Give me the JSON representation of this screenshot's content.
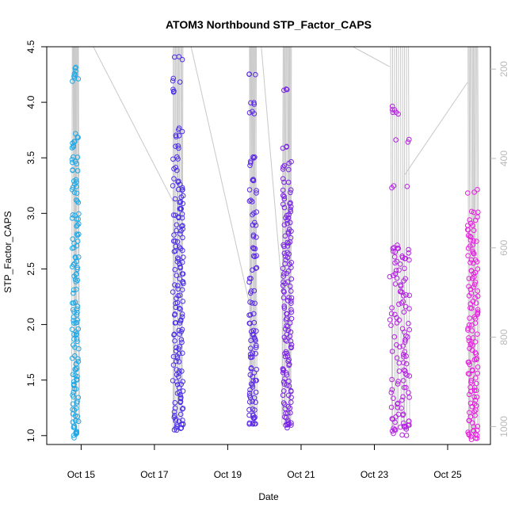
{
  "chart_data": {
    "type": "scatter",
    "title": "ATOM3 Northbound STP_Factor_CAPS",
    "xlabel": "Date",
    "ylabel": "STP_Factor_CAPS",
    "y2label": "",
    "xlim": [
      "2023-10-14T01:30",
      "2023-10-26T04:00"
    ],
    "ylim": [
      0.92,
      4.5
    ],
    "y2lim": [
      1040,
      150
    ],
    "x_ticks": [
      {
        "label": "Oct 15",
        "date": "2023-10-15"
      },
      {
        "label": "Oct 17",
        "date": "2023-10-17"
      },
      {
        "label": "Oct 19",
        "date": "2023-10-19"
      },
      {
        "label": "Oct 21",
        "date": "2023-10-21"
      },
      {
        "label": "Oct 23",
        "date": "2023-10-23"
      },
      {
        "label": "Oct 25",
        "date": "2023-10-25"
      }
    ],
    "y_ticks": [
      "1.0",
      "1.5",
      "2.0",
      "2.5",
      "3.0",
      "3.5",
      "4.0",
      "4.5"
    ],
    "y2_ticks": [
      "200",
      "400",
      "600",
      "800",
      "1000"
    ],
    "grid": false,
    "legend": "none",
    "colors": {
      "profile_line": "#c8c8c8",
      "axis": "#000000",
      "right_axis": "#b8b8b8",
      "gradient_start": "#1fa8e6",
      "gradient_mid": "#4a2fe8",
      "gradient_end": "#e81ee0"
    },
    "series": [
      {
        "color": "#1fa8e6",
        "x_range": [
          "2023-10-14T18:00",
          "2023-10-14T22:30"
        ],
        "y_values": [
          1.0,
          1.02,
          1.04,
          1.08,
          1.12,
          1.18,
          1.25,
          1.3,
          1.35,
          1.4,
          1.45,
          1.5,
          1.55,
          1.6,
          1.65,
          1.7,
          1.8,
          1.85,
          1.9,
          1.95,
          2.0,
          2.05,
          2.1,
          2.15,
          2.2,
          2.3,
          2.4,
          2.45,
          2.5,
          2.55,
          2.6,
          2.7,
          2.75,
          2.8,
          2.9,
          2.95,
          3.0,
          3.1,
          3.2,
          3.25,
          3.3,
          3.4,
          3.45,
          3.5,
          3.6,
          3.65,
          3.7,
          4.2,
          4.25,
          4.3
        ]
      },
      {
        "color": "#4a2fe8",
        "x_range": [
          "2023-10-17T12:00",
          "2023-10-17T19:00"
        ],
        "y_values": [
          1.05,
          1.07,
          1.1,
          1.12,
          1.15,
          1.2,
          1.25,
          1.3,
          1.35,
          1.4,
          1.45,
          1.5,
          1.55,
          1.6,
          1.65,
          1.7,
          1.75,
          1.8,
          1.85,
          1.9,
          1.95,
          2.0,
          2.05,
          2.1,
          2.15,
          2.2,
          2.25,
          2.3,
          2.35,
          2.4,
          2.45,
          2.5,
          2.55,
          2.6,
          2.65,
          2.7,
          2.75,
          2.8,
          2.85,
          2.9,
          2.95,
          3.0,
          3.05,
          3.1,
          3.15,
          3.2,
          3.25,
          3.3,
          3.4,
          3.5,
          3.6,
          3.7,
          3.75,
          4.1,
          4.2,
          4.4
        ]
      },
      {
        "color": "#5a28e6",
        "x_range": [
          "2023-10-19T14:00",
          "2023-10-19T19:00"
        ],
        "y_values": [
          1.1,
          1.12,
          1.15,
          1.2,
          1.25,
          1.3,
          1.35,
          1.4,
          1.45,
          1.5,
          1.55,
          1.6,
          1.7,
          1.75,
          1.8,
          1.85,
          1.9,
          1.95,
          2.0,
          2.1,
          2.2,
          2.3,
          2.4,
          2.5,
          2.6,
          2.7,
          2.8,
          2.9,
          3.0,
          3.1,
          3.2,
          3.3,
          3.45,
          3.5,
          3.9,
          4.0,
          4.25
        ]
      },
      {
        "color": "#7a24e4",
        "x_range": [
          "2023-10-20T12:00",
          "2023-10-20T18:00"
        ],
        "y_values": [
          1.08,
          1.1,
          1.12,
          1.15,
          1.2,
          1.25,
          1.3,
          1.35,
          1.4,
          1.45,
          1.5,
          1.55,
          1.6,
          1.65,
          1.7,
          1.75,
          1.8,
          1.85,
          1.9,
          1.95,
          2.0,
          2.05,
          2.1,
          2.15,
          2.2,
          2.25,
          2.3,
          2.35,
          2.4,
          2.45,
          2.5,
          2.55,
          2.6,
          2.65,
          2.7,
          2.75,
          2.8,
          2.85,
          2.9,
          2.95,
          3.0,
          3.05,
          3.1,
          3.15,
          3.2,
          3.3,
          3.4,
          3.45,
          3.6,
          4.12
        ]
      },
      {
        "color": "#b422e2",
        "x_range": [
          "2023-10-23T10:00",
          "2023-10-23T23:00"
        ],
        "y_values": [
          1.02,
          1.04,
          1.06,
          1.08,
          1.1,
          1.12,
          1.15,
          1.2,
          1.25,
          1.3,
          1.35,
          1.4,
          1.45,
          1.5,
          1.55,
          1.6,
          1.65,
          1.7,
          1.75,
          1.8,
          1.85,
          1.9,
          1.95,
          2.0,
          2.05,
          2.1,
          2.15,
          2.2,
          2.25,
          2.3,
          2.35,
          2.4,
          2.45,
          2.5,
          2.55,
          2.6,
          2.62,
          2.65,
          2.68,
          2.7,
          3.25,
          3.65,
          3.9,
          3.95
        ]
      },
      {
        "color": "#e81ee0",
        "x_range": [
          "2023-10-25T13:00",
          "2023-10-25T20:00"
        ],
        "y_values": [
          0.98,
          1.0,
          1.02,
          1.05,
          1.1,
          1.15,
          1.2,
          1.25,
          1.3,
          1.35,
          1.4,
          1.45,
          1.5,
          1.55,
          1.6,
          1.65,
          1.7,
          1.75,
          1.8,
          1.85,
          1.9,
          1.95,
          2.0,
          2.05,
          2.1,
          2.15,
          2.2,
          2.25,
          2.3,
          2.35,
          2.4,
          2.45,
          2.5,
          2.55,
          2.6,
          2.65,
          2.7,
          2.75,
          2.8,
          2.85,
          2.9,
          2.95,
          3.0,
          3.2
        ]
      }
    ]
  }
}
